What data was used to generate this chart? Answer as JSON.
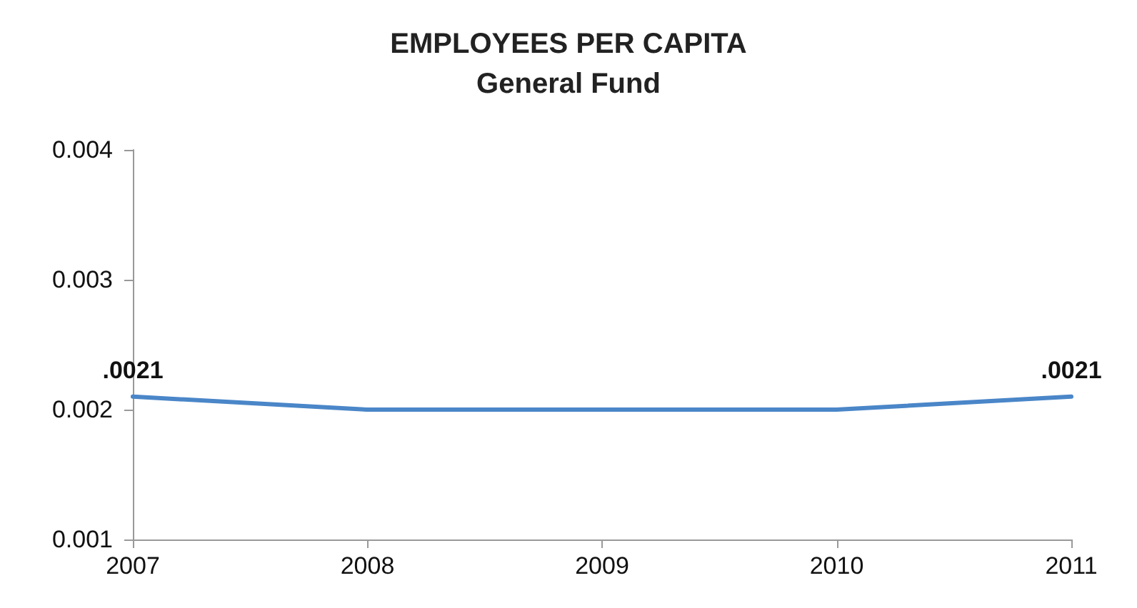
{
  "chart_data": {
    "type": "line",
    "title": "EMPLOYEES PER CAPITA",
    "subtitle": "General Fund",
    "categories": [
      "2007",
      "2008",
      "2009",
      "2010",
      "2011"
    ],
    "series": [
      {
        "color": "#4a86c8",
        "values": [
          0.0021,
          0.002,
          0.002,
          0.002,
          0.0021
        ],
        "value_labels": [
          ".0021",
          null,
          null,
          null,
          ".0021"
        ]
      }
    ],
    "ylim": [
      0.001,
      0.004
    ],
    "yticks": [
      0.001,
      0.002,
      0.003,
      0.004
    ],
    "grid": false,
    "marker": "none",
    "line_style": "solid"
  }
}
